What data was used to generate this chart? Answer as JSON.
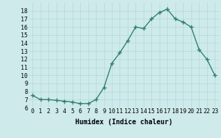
{
  "x": [
    0,
    1,
    2,
    3,
    4,
    5,
    6,
    7,
    8,
    9,
    10,
    11,
    12,
    13,
    14,
    15,
    16,
    17,
    18,
    19,
    20,
    21,
    22,
    23
  ],
  "y": [
    7.5,
    7.0,
    7.0,
    6.9,
    6.8,
    6.7,
    6.5,
    6.5,
    7.0,
    8.5,
    11.5,
    12.8,
    14.3,
    16.0,
    15.8,
    17.0,
    17.8,
    18.2,
    17.0,
    16.6,
    16.0,
    13.2,
    12.0,
    10.0
  ],
  "line_color": "#2e7d6e",
  "marker": "+",
  "marker_size": 4,
  "marker_lw": 1.0,
  "bg_color": "#ceeaeb",
  "grid_color": "#b0d8d8",
  "xlabel": "Humidex (Indice chaleur)",
  "ylim": [
    6,
    19
  ],
  "xlim": [
    -0.5,
    23.5
  ],
  "yticks": [
    6,
    7,
    8,
    9,
    10,
    11,
    12,
    13,
    14,
    15,
    16,
    17,
    18
  ],
  "xticks": [
    0,
    1,
    2,
    3,
    4,
    5,
    6,
    7,
    8,
    9,
    10,
    11,
    12,
    13,
    14,
    15,
    16,
    17,
    18,
    19,
    20,
    21,
    22,
    23
  ],
  "xtick_labels": [
    "0",
    "1",
    "2",
    "3",
    "4",
    "5",
    "6",
    "7",
    "8",
    "9",
    "10",
    "11",
    "12",
    "13",
    "14",
    "15",
    "16",
    "17",
    "18",
    "19",
    "20",
    "21",
    "22",
    "23"
  ],
  "xlabel_fontsize": 7,
  "tick_fontsize": 6,
  "line_width": 1.0
}
